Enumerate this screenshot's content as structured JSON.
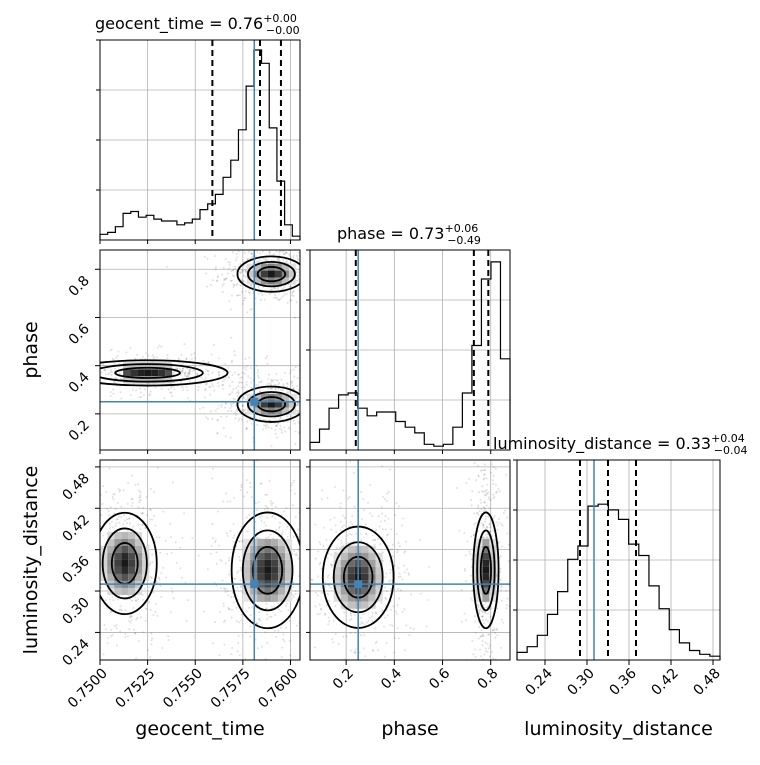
{
  "chart_data": {
    "type": "corner",
    "truth_color": "#4682b4",
    "quantile_color": "#000000",
    "grid": true,
    "parameters": [
      {
        "name": "geocent_time",
        "range": [
          0.75,
          0.7605
        ],
        "ticks": [
          0.75,
          0.7525,
          0.755,
          0.7575,
          0.76
        ],
        "tick_labels": [
          "0.7500",
          "0.7525",
          "0.7550",
          "0.7575",
          "0.7600"
        ],
        "truth": 0.7581,
        "quantiles": [
          0.7559,
          0.7584,
          0.7595
        ],
        "title": {
          "label": "geocent_time = ",
          "median": "0.76",
          "plus": "+0.00",
          "minus": "−0.00"
        },
        "hist": [
          0.03,
          0.04,
          0.07,
          0.14,
          0.15,
          0.12,
          0.13,
          0.11,
          0.1,
          0.1,
          0.08,
          0.09,
          0.11,
          0.16,
          0.19,
          0.24,
          0.33,
          0.42,
          0.58,
          0.81,
          1.0,
          0.93,
          0.59,
          0.31,
          0.08,
          0.02
        ]
      },
      {
        "name": "phase",
        "range": [
          0.05,
          0.88
        ],
        "ticks": [
          0.2,
          0.4,
          0.6,
          0.8
        ],
        "tick_labels": [
          "0.2",
          "0.4",
          "0.6",
          "0.8"
        ],
        "truth": 0.25,
        "quantiles": [
          0.24,
          0.73,
          0.79
        ],
        "title": {
          "label": "phase = ",
          "median": "0.73",
          "plus": "+0.06",
          "minus": "−0.49"
        },
        "hist": [
          0.04,
          0.11,
          0.22,
          0.29,
          0.3,
          0.22,
          0.18,
          0.2,
          0.2,
          0.15,
          0.12,
          0.09,
          0.03,
          0.02,
          0.03,
          0.12,
          0.3,
          0.55,
          0.9,
          0.99,
          0.48
        ]
      },
      {
        "name": "luminosity_distance",
        "range": [
          0.2,
          0.49
        ],
        "ticks": [
          0.24,
          0.3,
          0.36,
          0.42,
          0.48
        ],
        "tick_labels": [
          "0.24",
          "0.30",
          "0.36",
          "0.42",
          "0.48"
        ],
        "truth": 0.31,
        "quantiles": [
          0.29,
          0.33,
          0.37
        ],
        "title": {
          "label": "luminosity_distance = ",
          "median": "0.33",
          "plus": "+0.04",
          "minus": "−0.04"
        },
        "hist": [
          0.04,
          0.07,
          0.13,
          0.24,
          0.36,
          0.53,
          0.6,
          0.81,
          0.82,
          0.79,
          0.74,
          0.61,
          0.55,
          0.39,
          0.27,
          0.16,
          0.09,
          0.05,
          0.03,
          0.02
        ]
      }
    ],
    "pairs": [
      {
        "x": 0,
        "y": 1,
        "modes": [
          {
            "cx": 0.759,
            "cy": 0.78,
            "sx": 0.00085,
            "sy": 0.035
          },
          {
            "cx": 0.759,
            "cy": 0.24,
            "sx": 0.00085,
            "sy": 0.035
          },
          {
            "cx": 0.7525,
            "cy": 0.37,
            "sx": 0.002,
            "sy": 0.025
          }
        ]
      },
      {
        "x": 0,
        "y": 2,
        "modes": [
          {
            "cx": 0.7588,
            "cy": 0.33,
            "sx": 0.0009,
            "sy": 0.04
          },
          {
            "cx": 0.7513,
            "cy": 0.34,
            "sx": 0.0008,
            "sy": 0.035
          }
        ]
      },
      {
        "x": 1,
        "y": 2,
        "modes": [
          {
            "cx": 0.78,
            "cy": 0.33,
            "sx": 0.025,
            "sy": 0.04
          },
          {
            "cx": 0.25,
            "cy": 0.32,
            "sx": 0.07,
            "sy": 0.035
          }
        ]
      }
    ]
  }
}
